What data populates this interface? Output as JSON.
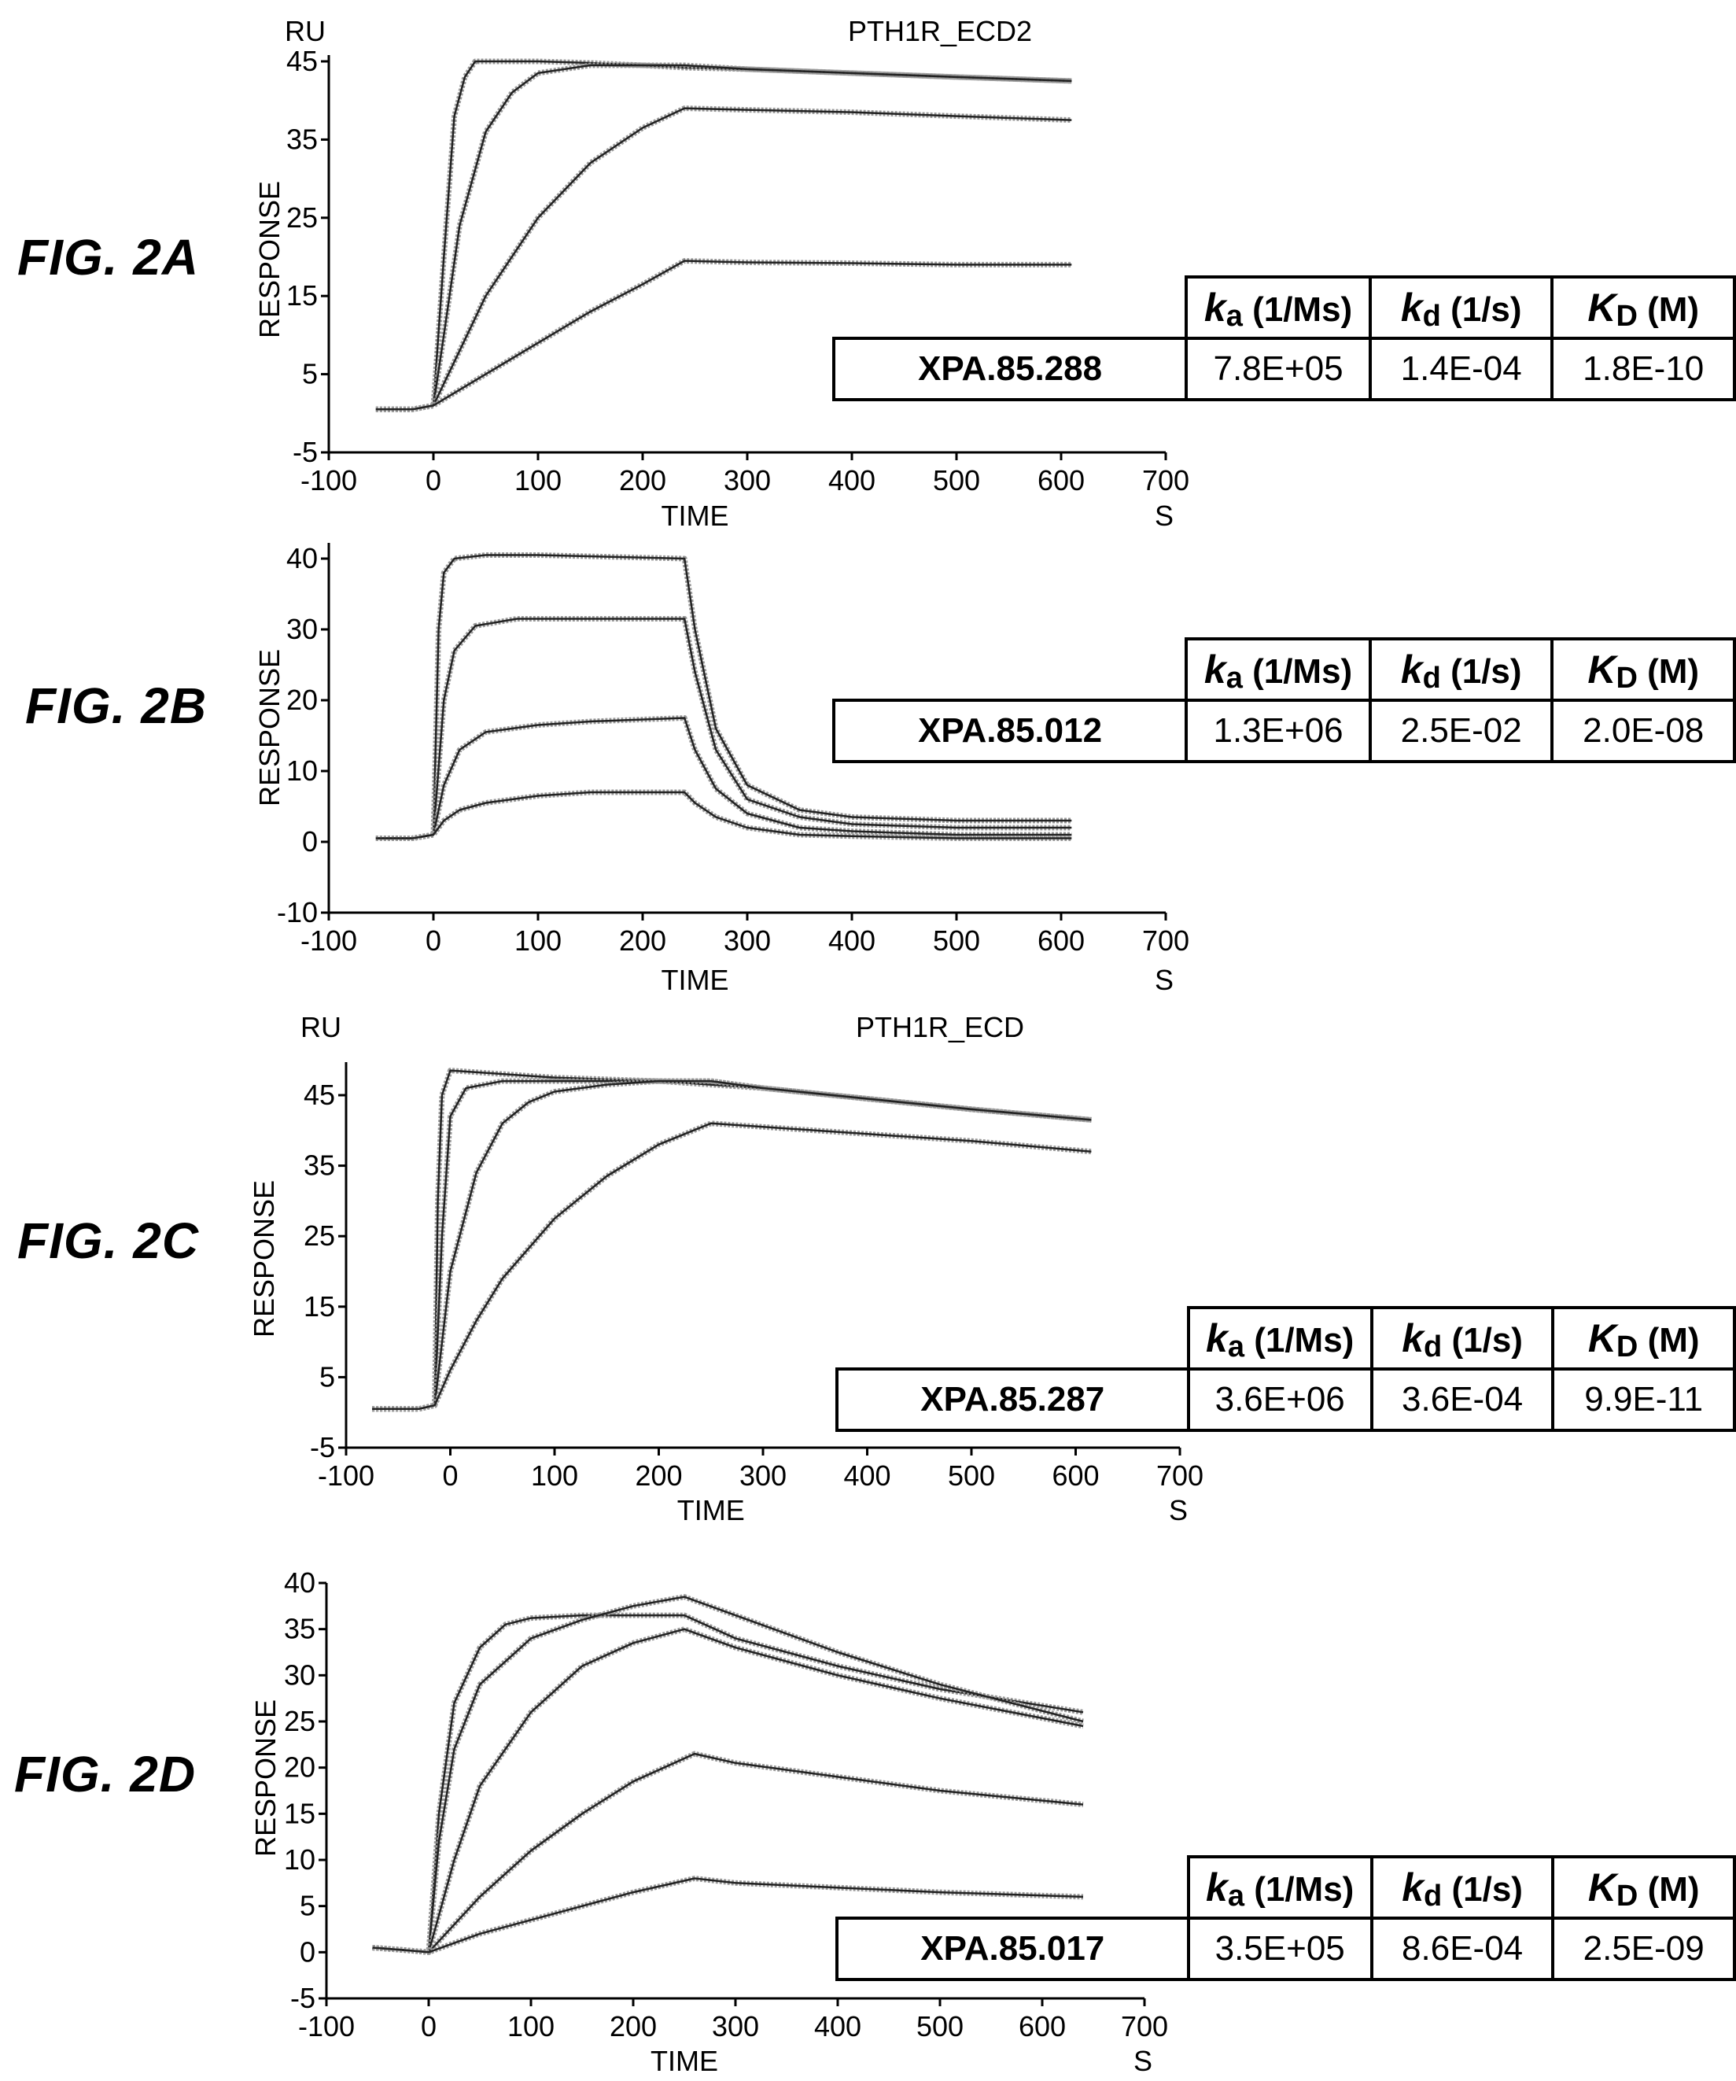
{
  "panels": [
    {
      "fig_label": "FIG. 2A",
      "top_left_unit": "RU",
      "plot_title": "PTH1R_ECD2",
      "ylabel": "RESPONSE",
      "xlabel": "TIME",
      "x_unit": "S",
      "table": {
        "headers": [
          {
            "sym": "k",
            "sub": "a",
            "rest": " (1/Ms)"
          },
          {
            "sym": "k",
            "sub": "d",
            "rest": " (1/s)"
          },
          {
            "sym": "K",
            "sub": "D",
            "rest": " (M)"
          }
        ],
        "name": "XPA.85.288",
        "values": [
          "7.8E+05",
          "1.4E-04",
          "1.8E-10"
        ]
      }
    },
    {
      "fig_label": "FIG. 2B",
      "top_left_unit": "",
      "plot_title": "",
      "ylabel": "RESPONSE",
      "xlabel": "TIME",
      "x_unit": "S",
      "table": {
        "headers": [
          {
            "sym": "k",
            "sub": "a",
            "rest": " (1/Ms)"
          },
          {
            "sym": "k",
            "sub": "d",
            "rest": " (1/s)"
          },
          {
            "sym": "K",
            "sub": "D",
            "rest": " (M)"
          }
        ],
        "name": "XPA.85.012",
        "values": [
          "1.3E+06",
          "2.5E-02",
          "2.0E-08"
        ]
      }
    },
    {
      "fig_label": "FIG. 2C",
      "top_left_unit": "RU",
      "plot_title": "PTH1R_ECD",
      "ylabel": "RESPONSE",
      "xlabel": "TIME",
      "x_unit": "S",
      "table": {
        "headers": [
          {
            "sym": "k",
            "sub": "a",
            "rest": " (1/Ms)"
          },
          {
            "sym": "k",
            "sub": "d",
            "rest": " (1/s)"
          },
          {
            "sym": "K",
            "sub": "D",
            "rest": " (M)"
          }
        ],
        "name": "XPA.85.287",
        "values": [
          "3.6E+06",
          "3.6E-04",
          "9.9E-11"
        ]
      }
    },
    {
      "fig_label": "FIG. 2D",
      "top_left_unit": "",
      "plot_title": "",
      "ylabel": "RESPONSE",
      "xlabel": "TIME",
      "x_unit": "S",
      "table": {
        "headers": [
          {
            "sym": "k",
            "sub": "a",
            "rest": " (1/Ms)"
          },
          {
            "sym": "k",
            "sub": "d",
            "rest": " (1/s)"
          },
          {
            "sym": "K",
            "sub": "D",
            "rest": " (M)"
          }
        ],
        "name": "XPA.85.017",
        "values": [
          "3.5E+05",
          "8.6E-04",
          "2.5E-09"
        ]
      }
    }
  ],
  "chart_data": [
    {
      "type": "line",
      "title": "PTH1R_ECD2",
      "xlabel": "TIME",
      "ylabel": "RESPONSE",
      "xlim": [
        -100,
        700
      ],
      "ylim": [
        -5,
        50
      ],
      "xticks": [
        -100,
        0,
        100,
        200,
        300,
        400,
        500,
        600,
        700
      ],
      "yticks": [
        -5,
        5,
        15,
        25,
        35,
        45
      ],
      "grid": false,
      "series": [
        {
          "x": [
            -55,
            -20,
            0,
            10,
            20,
            30,
            40,
            60,
            100,
            150,
            200,
            240,
            300,
            400,
            500,
            610
          ],
          "values": [
            0.5,
            0.5,
            1,
            20,
            38,
            43,
            45,
            45,
            45,
            44.8,
            44.5,
            44.2,
            44,
            43.5,
            43,
            42.5
          ]
        },
        {
          "x": [
            -55,
            -20,
            0,
            10,
            25,
            50,
            75,
            100,
            150,
            200,
            240,
            300,
            400,
            500,
            610
          ],
          "values": [
            0.5,
            0.5,
            1,
            10,
            24,
            36,
            41,
            43.5,
            44.5,
            44.5,
            44.5,
            44,
            43.5,
            43,
            42.5
          ]
        },
        {
          "x": [
            -55,
            -20,
            0,
            25,
            50,
            100,
            150,
            200,
            240,
            300,
            400,
            500,
            610
          ],
          "values": [
            0.5,
            0.5,
            1,
            8,
            15,
            25,
            32,
            36.5,
            39,
            38.8,
            38.5,
            38,
            37.5
          ]
        },
        {
          "x": [
            -55,
            -20,
            0,
            50,
            100,
            150,
            200,
            240,
            300,
            400,
            500,
            610
          ],
          "values": [
            0.5,
            0.5,
            1,
            5,
            9,
            13,
            16.5,
            19.5,
            19.3,
            19.2,
            19,
            19
          ]
        }
      ]
    },
    {
      "type": "line",
      "title": "",
      "xlabel": "TIME",
      "ylabel": "RESPONSE",
      "xlim": [
        -100,
        700
      ],
      "ylim": [
        -10,
        42
      ],
      "xticks": [
        -100,
        0,
        100,
        200,
        300,
        400,
        500,
        600,
        700
      ],
      "yticks": [
        -10,
        0,
        10,
        20,
        30,
        40
      ],
      "grid": false,
      "series": [
        {
          "x": [
            -55,
            -20,
            0,
            5,
            10,
            20,
            50,
            100,
            240,
            250,
            270,
            300,
            350,
            400,
            500,
            610
          ],
          "values": [
            0.5,
            0.5,
            1,
            30,
            38,
            40,
            40.5,
            40.5,
            40,
            30,
            16,
            8,
            4.5,
            3.5,
            3,
            3
          ]
        },
        {
          "x": [
            -55,
            -20,
            0,
            10,
            20,
            40,
            80,
            150,
            240,
            250,
            270,
            300,
            350,
            400,
            500,
            610
          ],
          "values": [
            0.5,
            0.5,
            1,
            20,
            27,
            30.5,
            31.5,
            31.5,
            31.5,
            24,
            13,
            6,
            3.5,
            2.5,
            2,
            2
          ]
        },
        {
          "x": [
            -55,
            -20,
            0,
            10,
            25,
            50,
            100,
            150,
            240,
            250,
            270,
            300,
            350,
            400,
            500,
            610
          ],
          "values": [
            0.5,
            0.5,
            1,
            8,
            13,
            15.5,
            16.5,
            17,
            17.5,
            13,
            7.5,
            4,
            2,
            1.5,
            1,
            1
          ]
        },
        {
          "x": [
            -55,
            -20,
            0,
            10,
            25,
            50,
            100,
            150,
            240,
            250,
            270,
            300,
            350,
            400,
            500,
            610
          ],
          "values": [
            0.5,
            0.5,
            1,
            3,
            4.5,
            5.5,
            6.5,
            7,
            7,
            5.5,
            3.5,
            2,
            1,
            0.8,
            0.5,
            0.5
          ]
        }
      ]
    },
    {
      "type": "line",
      "title": "PTH1R_ECD",
      "xlabel": "TIME",
      "ylabel": "RESPONSE",
      "xlim": [
        -100,
        700
      ],
      "ylim": [
        -5,
        50
      ],
      "xticks": [
        -100,
        0,
        100,
        200,
        300,
        400,
        500,
        600,
        700
      ],
      "yticks": [
        -5,
        5,
        15,
        25,
        35,
        45
      ],
      "grid": false,
      "series": [
        {
          "x": [
            -75,
            -30,
            -15,
            -12,
            -8,
            0,
            50,
            100,
            200,
            250,
            300,
            400,
            500,
            615
          ],
          "values": [
            0.5,
            0.5,
            1,
            30,
            45,
            48.5,
            48,
            47.5,
            47,
            47,
            46,
            44.5,
            43,
            41.5
          ]
        },
        {
          "x": [
            -75,
            -30,
            -15,
            -8,
            0,
            15,
            50,
            100,
            200,
            250,
            300,
            400,
            500,
            615
          ],
          "values": [
            0.5,
            0.5,
            1,
            25,
            42,
            46,
            47,
            47,
            47,
            46.5,
            46,
            44.5,
            43,
            41.5
          ]
        },
        {
          "x": [
            -75,
            -30,
            -15,
            0,
            25,
            50,
            75,
            100,
            150,
            200,
            250,
            300,
            400,
            500,
            615
          ],
          "values": [
            0.5,
            0.5,
            1,
            20,
            34,
            41,
            44,
            45.5,
            46.5,
            47,
            47,
            46,
            44.5,
            43,
            41.5
          ]
        },
        {
          "x": [
            -75,
            -30,
            -15,
            0,
            25,
            50,
            100,
            150,
            200,
            250,
            300,
            400,
            500,
            615
          ],
          "values": [
            0.5,
            0.5,
            1,
            6,
            13,
            19,
            27.5,
            33.5,
            38,
            41,
            40.5,
            39.5,
            38.5,
            37
          ]
        }
      ]
    },
    {
      "type": "line",
      "title": "",
      "xlabel": "TIME",
      "ylabel": "RESPONSE",
      "xlim": [
        -100,
        700
      ],
      "ylim": [
        -5,
        40
      ],
      "xticks": [
        -100,
        0,
        100,
        200,
        300,
        400,
        500,
        600,
        700
      ],
      "yticks": [
        -5,
        0,
        5,
        10,
        15,
        20,
        25,
        30,
        35,
        40
      ],
      "grid": false,
      "series": [
        {
          "x": [
            -55,
            -20,
            0,
            10,
            25,
            50,
            75,
            100,
            150,
            200,
            250,
            300,
            400,
            500,
            640
          ],
          "values": [
            0.5,
            0.2,
            0,
            15,
            27,
            33,
            35.5,
            36.2,
            36.5,
            36.5,
            36.5,
            34,
            31,
            28.5,
            26
          ]
        },
        {
          "x": [
            -55,
            -20,
            0,
            10,
            25,
            50,
            100,
            150,
            200,
            250,
            300,
            400,
            500,
            640
          ],
          "values": [
            0.5,
            0.2,
            0,
            12,
            22,
            29,
            34,
            36,
            37.5,
            38.5,
            36.5,
            32.5,
            29,
            25
          ]
        },
        {
          "x": [
            -55,
            -20,
            0,
            25,
            50,
            100,
            150,
            200,
            250,
            300,
            400,
            500,
            640
          ],
          "values": [
            0.5,
            0.2,
            0,
            10,
            18,
            26,
            31,
            33.5,
            35,
            33,
            30,
            27.5,
            24.5
          ]
        },
        {
          "x": [
            -55,
            -20,
            0,
            50,
            100,
            150,
            200,
            260,
            300,
            400,
            500,
            640
          ],
          "values": [
            0.5,
            0.2,
            0,
            6,
            11,
            15,
            18.5,
            21.5,
            20.5,
            19,
            17.5,
            16
          ]
        },
        {
          "x": [
            -55,
            -20,
            0,
            50,
            100,
            150,
            200,
            260,
            300,
            400,
            500,
            640
          ],
          "values": [
            0.5,
            0.2,
            0,
            2,
            3.5,
            5,
            6.5,
            8,
            7.5,
            7,
            6.5,
            6
          ]
        }
      ]
    }
  ]
}
